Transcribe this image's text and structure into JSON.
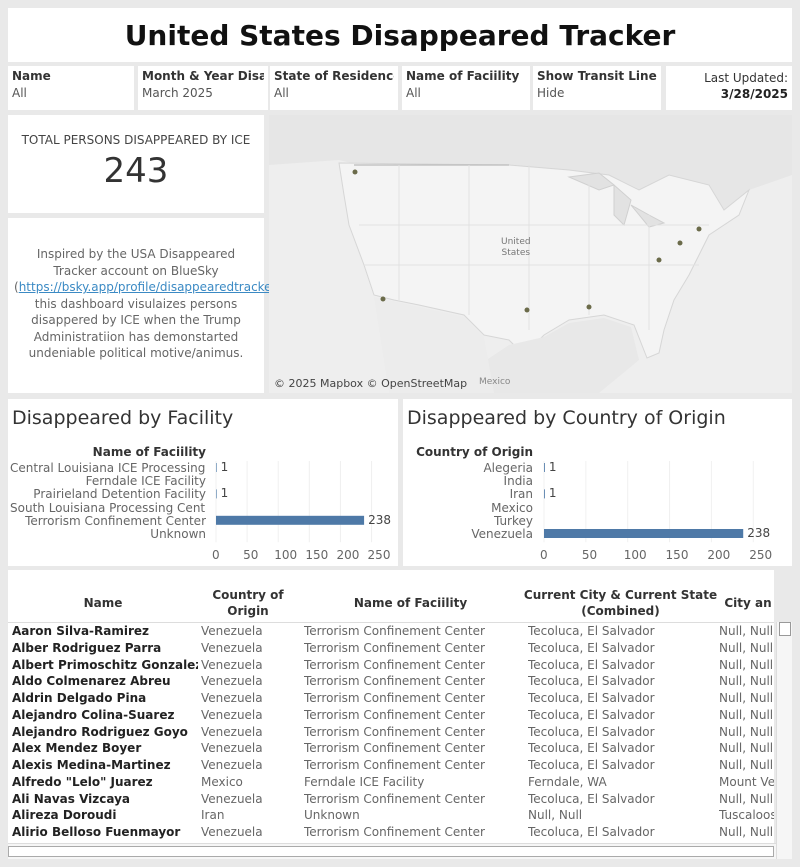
{
  "title": "United States Disappeared Tracker",
  "filters": [
    {
      "label": "Name",
      "value": "All"
    },
    {
      "label": "Month & Year Disapp..",
      "value": "March 2025"
    },
    {
      "label": "State of Residence",
      "value": "All"
    },
    {
      "label": "Name of Faciility",
      "value": "All"
    },
    {
      "label": "Show Transit Lines",
      "value": "Hide"
    }
  ],
  "last_updated": {
    "label": "Last Updated:",
    "date": "3/28/2025"
  },
  "total": {
    "caption": "TOTAL PERSONS DISAPPEARED BY ICE",
    "value": "243"
  },
  "about": {
    "pre": "Inspired by the USA Disappeared Tracker account on BlueSky (",
    "link": "https://bsky.app/profile/disappearedtracker.bsky.social",
    "post": "), this dashboard visulaizes persons disappered by ICE when the Trump Administratiion has demonstarted undeniable political motive/animus."
  },
  "map": {
    "copyright": "© 2025 Mapbox © OpenStreetMap",
    "country_label_1": "United",
    "country_label_2": "States",
    "neighbor_label": "Mexico"
  },
  "chart_data": [
    {
      "type": "bar",
      "orientation": "horizontal",
      "title": "Disappeared by  Facility",
      "dimension_label": "Name of Faciility",
      "categories": [
        "Central Louisiana ICE Processing ..",
        "Ferndale ICE Facility",
        "Prairieland Detention Facility",
        "South Louisiana Processing Cent..",
        "Terrorism Confinement Center",
        "Unknown"
      ],
      "values": [
        1,
        null,
        1,
        null,
        238,
        null
      ],
      "ticks": [
        0,
        50,
        100,
        150,
        200,
        250
      ],
      "xlim": [
        0,
        270
      ],
      "color": "#4e79a7"
    },
    {
      "type": "bar",
      "orientation": "horizontal",
      "title": "Disappeared by Country of Origin",
      "dimension_label": "Country of Origin",
      "categories": [
        "Alegeria",
        "India",
        "Iran",
        "Mexico",
        "Turkey",
        "Venezuela"
      ],
      "values": [
        1,
        null,
        1,
        null,
        null,
        238
      ],
      "ticks": [
        0,
        50,
        100,
        150,
        200,
        250
      ],
      "xlim": [
        0,
        270
      ],
      "color": "#4e79a7"
    }
  ],
  "table": {
    "columns": [
      "Name",
      "Country of Origin",
      "Name of Faciility",
      "Current City & Current State (Combined)",
      "City an"
    ],
    "rows": [
      [
        "Aaron Silva-Ramirez",
        "Venezuela",
        "Terrorism Confinement Center",
        "Tecoluca, El Salvador",
        "Null, Null"
      ],
      [
        "Alber Rodriguez Parra",
        "Venezuela",
        "Terrorism Confinement Center",
        "Tecoluca, El Salvador",
        "Null, Null"
      ],
      [
        "Albert Primoschitz Gonzalez",
        "Venezuela",
        "Terrorism Confinement Center",
        "Tecoluca, El Salvador",
        "Null, Null"
      ],
      [
        "Aldo Colmenarez Abreu",
        "Venezuela",
        "Terrorism Confinement Center",
        "Tecoluca, El Salvador",
        "Null, Null"
      ],
      [
        "Aldrin Delgado Pina",
        "Venezuela",
        "Terrorism Confinement Center",
        "Tecoluca, El Salvador",
        "Null, Null"
      ],
      [
        "Alejandro Colina-Suarez",
        "Venezuela",
        "Terrorism Confinement Center",
        "Tecoluca, El Salvador",
        "Null, Null"
      ],
      [
        "Alejandro Rodriguez Goyo",
        "Venezuela",
        "Terrorism Confinement Center",
        "Tecoluca, El Salvador",
        "Null, Null"
      ],
      [
        "Alex Mendez Boyer",
        "Venezuela",
        "Terrorism Confinement Center",
        "Tecoluca, El Salvador",
        "Null, Null"
      ],
      [
        "Alexis Medina-Martinez",
        "Venezuela",
        "Terrorism Confinement Center",
        "Tecoluca, El Salvador",
        "Null, Null"
      ],
      [
        "Alfredo \"Lelo\" Juarez",
        "Mexico",
        "Ferndale ICE Facility",
        "Ferndale, WA",
        "Mount Ve"
      ],
      [
        "Ali Navas Vizcaya",
        "Venezuela",
        "Terrorism Confinement Center",
        "Tecoluca, El Salvador",
        "Null, Null"
      ],
      [
        "Alireza Doroudi",
        "Iran",
        "Unknown",
        "Null, Null",
        "Tuscaloos"
      ],
      [
        "Alirio Belloso Fuenmayor",
        "Venezuela",
        "Terrorism Confinement Center",
        "Tecoluca, El Salvador",
        "Null, Null"
      ]
    ]
  }
}
